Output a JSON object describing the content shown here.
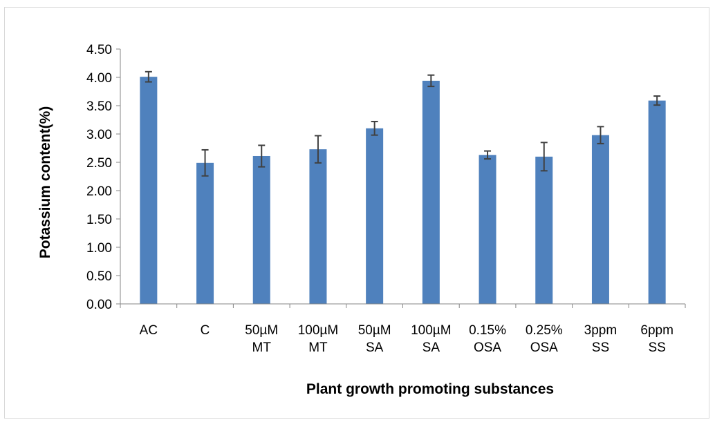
{
  "chart_data": {
    "type": "bar",
    "title": "",
    "xlabel": "Plant growth promoting substances",
    "ylabel": "Potassium content(%)",
    "ylim": [
      0,
      4.5
    ],
    "ytick_step": 0.5,
    "ytick_decimals": 2,
    "grid": false,
    "legend": "none",
    "bar_color": "#4f81bd",
    "error_bar_color": "#404040",
    "categories": [
      [
        "AC"
      ],
      [
        "C"
      ],
      [
        "50µM",
        "MT"
      ],
      [
        "100µM",
        "MT"
      ],
      [
        "50µM",
        "SA"
      ],
      [
        "100µM",
        "SA"
      ],
      [
        "0.15%",
        "OSA"
      ],
      [
        "0.25%",
        "OSA"
      ],
      [
        "3ppm",
        "SS"
      ],
      [
        "6ppm",
        "SS"
      ]
    ],
    "values": [
      4.01,
      2.49,
      2.61,
      2.73,
      3.1,
      3.94,
      2.63,
      2.6,
      2.98,
      3.59
    ],
    "errors": [
      0.09,
      0.23,
      0.19,
      0.24,
      0.12,
      0.1,
      0.07,
      0.25,
      0.15,
      0.08
    ]
  }
}
